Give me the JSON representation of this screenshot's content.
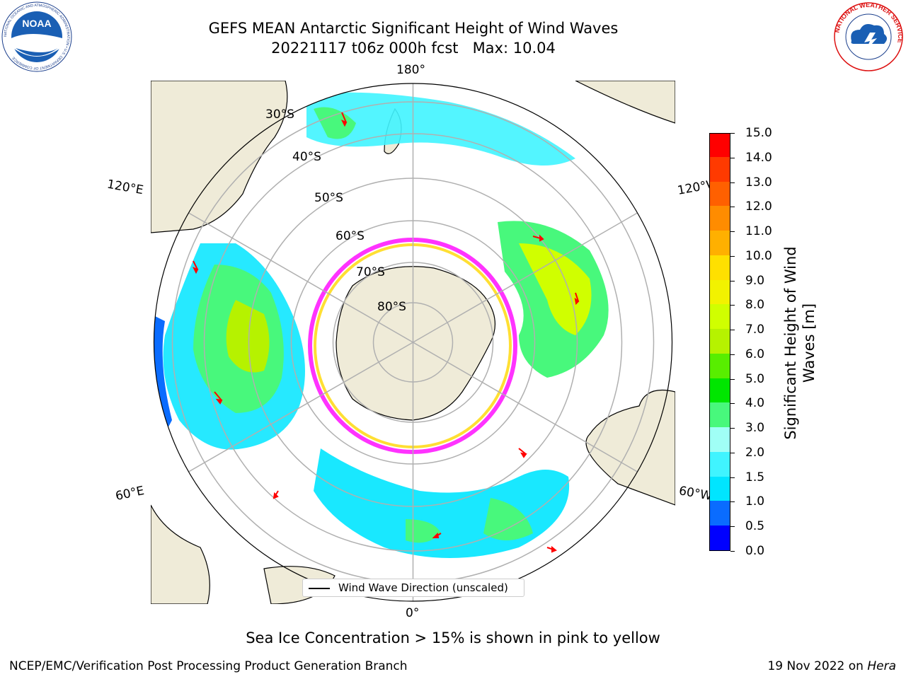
{
  "header": {
    "title_line1": "GEFS MEAN Antarctic Significant Height of Wind Waves",
    "title_line2": "20221117 t06z 000h fcst   Max: 10.04"
  },
  "logos": {
    "left": "noaa-logo",
    "right": "nws-logo",
    "noaa_text": "NOAA",
    "noaa_ring_text": "NATIONAL OCEANIC AND ATMOSPHERIC ADMINISTRATION • U.S. DEPARTMENT OF COMMERCE",
    "nws_ring_text": "NATIONAL WEATHER SERVICE"
  },
  "map": {
    "projection": "south-polar-stereographic",
    "longitude_labels": {
      "top": "180°",
      "bottom": "0°",
      "left_upper": "120°E",
      "left_lower": "60°E",
      "right_upper": "120°W",
      "right_lower": "60°W"
    },
    "latitude_labels": [
      "30°S",
      "40°S",
      "50°S",
      "60°S",
      "70°S",
      "80°S"
    ],
    "colors": {
      "land": "#efebd8",
      "coastline": "#000000",
      "gridline": "#b0b0b0",
      "arrow": "#ff0000",
      "sea_ice_low": "#ff00ff",
      "sea_ice_high": "#ffd700"
    }
  },
  "colorbar": {
    "title": "Significant Height of Wind Waves [m]",
    "tick_labels": [
      "0.0",
      "0.5",
      "1.0",
      "1.5",
      "2.0",
      "3.0",
      "4.0",
      "5.0",
      "6.0",
      "7.0",
      "8.0",
      "9.0",
      "10.0",
      "11.0",
      "12.0",
      "13.0",
      "14.0",
      "15.0"
    ],
    "colors": [
      "#0000ff",
      "#0a6cff",
      "#00e5ff",
      "#40f4ff",
      "#a0fff6",
      "#48f87c",
      "#00e600",
      "#58ee00",
      "#b6f200",
      "#d0ff00",
      "#f2f200",
      "#ffe000",
      "#ffb000",
      "#ff8c00",
      "#ff6000",
      "#ff3a00",
      "#ff0000"
    ]
  },
  "legend": {
    "label": "Wind Wave Direction (unscaled)"
  },
  "footer": {
    "note": "Sea Ice Concentration > 15% is shown in pink to yellow",
    "credit": "NCEP/EMC/Verification Post Processing Product Generation Branch",
    "date": "19 Nov 2022 on ",
    "machine": "Hera"
  }
}
